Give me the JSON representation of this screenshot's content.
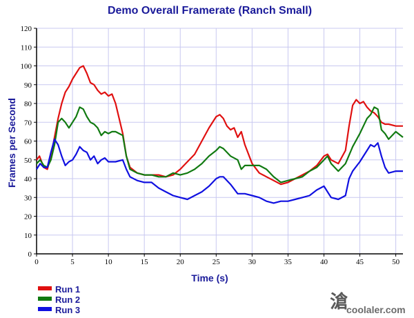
{
  "chart_data": {
    "type": "line",
    "title": "Demo Overall Framerate (Ranch Small)",
    "xlabel": "Time (s)",
    "ylabel": "Frames per Second",
    "xlim": [
      0,
      51
    ],
    "ylim": [
      0,
      120
    ],
    "xticks": [
      0,
      5,
      10,
      15,
      20,
      25,
      30,
      35,
      40,
      45,
      50
    ],
    "yticks": [
      0,
      10,
      20,
      30,
      40,
      50,
      60,
      70,
      80,
      90,
      100,
      110,
      120
    ],
    "grid": true,
    "legend_position": "bottom-left",
    "series": [
      {
        "name": "Run 1",
        "color": "#e01010",
        "points": [
          [
            0,
            50
          ],
          [
            0.4,
            52
          ],
          [
            1,
            46
          ],
          [
            1.5,
            45
          ],
          [
            2,
            52
          ],
          [
            2.5,
            62
          ],
          [
            3,
            72
          ],
          [
            3.5,
            80
          ],
          [
            4,
            86
          ],
          [
            4.5,
            89
          ],
          [
            5,
            93
          ],
          [
            5.5,
            96
          ],
          [
            6,
            99
          ],
          [
            6.5,
            100
          ],
          [
            7,
            96
          ],
          [
            7.5,
            91
          ],
          [
            8,
            90
          ],
          [
            8.5,
            87
          ],
          [
            9,
            85
          ],
          [
            9.5,
            86
          ],
          [
            10,
            84
          ],
          [
            10.5,
            85
          ],
          [
            11,
            80
          ],
          [
            11.5,
            72
          ],
          [
            12,
            64
          ],
          [
            12.5,
            52
          ],
          [
            13,
            46
          ],
          [
            14,
            43
          ],
          [
            15,
            42
          ],
          [
            16,
            42
          ],
          [
            17,
            42
          ],
          [
            18,
            41
          ],
          [
            19,
            42
          ],
          [
            20,
            45
          ],
          [
            21,
            49
          ],
          [
            22,
            53
          ],
          [
            23,
            60
          ],
          [
            24,
            67
          ],
          [
            25,
            73
          ],
          [
            25.5,
            74
          ],
          [
            26,
            72
          ],
          [
            26.5,
            68
          ],
          [
            27,
            66
          ],
          [
            27.5,
            67
          ],
          [
            28,
            62
          ],
          [
            28.5,
            65
          ],
          [
            29,
            58
          ],
          [
            30,
            48
          ],
          [
            31,
            43
          ],
          [
            32,
            41
          ],
          [
            33,
            39
          ],
          [
            34,
            37
          ],
          [
            35,
            38
          ],
          [
            36,
            40
          ],
          [
            37,
            42
          ],
          [
            38,
            44
          ],
          [
            39,
            47
          ],
          [
            40,
            52
          ],
          [
            40.5,
            53
          ],
          [
            41,
            50
          ],
          [
            42,
            48
          ],
          [
            43,
            55
          ],
          [
            43.5,
            68
          ],
          [
            44,
            79
          ],
          [
            44.5,
            82
          ],
          [
            45,
            80
          ],
          [
            45.5,
            81
          ],
          [
            46,
            78
          ],
          [
            46.5,
            76
          ],
          [
            47,
            75
          ],
          [
            47.5,
            73
          ],
          [
            48,
            70
          ],
          [
            48.5,
            69
          ],
          [
            49,
            69
          ],
          [
            50,
            68
          ],
          [
            51,
            68
          ]
        ]
      },
      {
        "name": "Run 2",
        "color": "#117a11",
        "points": [
          [
            0,
            48
          ],
          [
            0.5,
            50
          ],
          [
            1,
            47
          ],
          [
            1.5,
            46
          ],
          [
            2,
            50
          ],
          [
            2.5,
            58
          ],
          [
            3,
            70
          ],
          [
            3.5,
            72
          ],
          [
            4,
            70
          ],
          [
            4.5,
            67
          ],
          [
            5,
            70
          ],
          [
            5.5,
            73
          ],
          [
            6,
            78
          ],
          [
            6.5,
            77
          ],
          [
            7,
            73
          ],
          [
            7.5,
            70
          ],
          [
            8,
            69
          ],
          [
            8.5,
            67
          ],
          [
            9,
            63
          ],
          [
            9.5,
            65
          ],
          [
            10,
            64
          ],
          [
            10.5,
            65
          ],
          [
            11,
            65
          ],
          [
            11.5,
            64
          ],
          [
            12,
            63
          ],
          [
            12.5,
            52
          ],
          [
            13,
            45
          ],
          [
            14,
            43
          ],
          [
            15,
            42
          ],
          [
            16,
            42
          ],
          [
            17,
            41
          ],
          [
            18,
            41
          ],
          [
            19,
            43
          ],
          [
            20,
            42
          ],
          [
            21,
            43
          ],
          [
            22,
            45
          ],
          [
            23,
            48
          ],
          [
            24,
            52
          ],
          [
            25,
            55
          ],
          [
            25.5,
            57
          ],
          [
            26,
            56
          ],
          [
            27,
            52
          ],
          [
            28,
            50
          ],
          [
            28.5,
            45
          ],
          [
            29,
            47
          ],
          [
            30,
            47
          ],
          [
            31,
            47
          ],
          [
            32,
            45
          ],
          [
            33,
            41
          ],
          [
            34,
            38
          ],
          [
            35,
            39
          ],
          [
            36,
            40
          ],
          [
            37,
            41
          ],
          [
            38,
            44
          ],
          [
            39,
            46
          ],
          [
            40,
            50
          ],
          [
            40.5,
            52
          ],
          [
            41,
            48
          ],
          [
            42,
            44
          ],
          [
            43,
            48
          ],
          [
            44,
            57
          ],
          [
            45,
            64
          ],
          [
            45.5,
            68
          ],
          [
            46,
            72
          ],
          [
            46.5,
            74
          ],
          [
            47,
            78
          ],
          [
            47.5,
            77
          ],
          [
            48,
            66
          ],
          [
            48.5,
            64
          ],
          [
            49,
            61
          ],
          [
            50,
            65
          ],
          [
            51,
            62
          ]
        ]
      },
      {
        "name": "Run 3",
        "color": "#1010e0",
        "points": [
          [
            0,
            45
          ],
          [
            0.5,
            48
          ],
          [
            1,
            46
          ],
          [
            1.5,
            46
          ],
          [
            2,
            54
          ],
          [
            2.5,
            61
          ],
          [
            3,
            58
          ],
          [
            3.5,
            52
          ],
          [
            4,
            47
          ],
          [
            4.5,
            49
          ],
          [
            5,
            50
          ],
          [
            5.5,
            53
          ],
          [
            6,
            57
          ],
          [
            6.5,
            55
          ],
          [
            7,
            54
          ],
          [
            7.5,
            50
          ],
          [
            8,
            52
          ],
          [
            8.5,
            48
          ],
          [
            9,
            50
          ],
          [
            9.5,
            51
          ],
          [
            10,
            49
          ],
          [
            11,
            49
          ],
          [
            12,
            50
          ],
          [
            12.5,
            45
          ],
          [
            13,
            41
          ],
          [
            14,
            39
          ],
          [
            15,
            38
          ],
          [
            16,
            38
          ],
          [
            17,
            35
          ],
          [
            18,
            33
          ],
          [
            19,
            31
          ],
          [
            20,
            30
          ],
          [
            21,
            29
          ],
          [
            22,
            31
          ],
          [
            23,
            33
          ],
          [
            24,
            36
          ],
          [
            25,
            40
          ],
          [
            25.5,
            41
          ],
          [
            26,
            41
          ],
          [
            27,
            37
          ],
          [
            28,
            32
          ],
          [
            29,
            32
          ],
          [
            30,
            31
          ],
          [
            31,
            30
          ],
          [
            32,
            28
          ],
          [
            33,
            27
          ],
          [
            34,
            28
          ],
          [
            35,
            28
          ],
          [
            36,
            29
          ],
          [
            37,
            30
          ],
          [
            38,
            31
          ],
          [
            39,
            34
          ],
          [
            40,
            36
          ],
          [
            40.5,
            33
          ],
          [
            41,
            30
          ],
          [
            42,
            29
          ],
          [
            43,
            31
          ],
          [
            43.5,
            40
          ],
          [
            44,
            44
          ],
          [
            45,
            49
          ],
          [
            46,
            55
          ],
          [
            46.5,
            58
          ],
          [
            47,
            57
          ],
          [
            47.5,
            59
          ],
          [
            48,
            52
          ],
          [
            48.5,
            46
          ],
          [
            49,
            43
          ],
          [
            50,
            44
          ],
          [
            51,
            44
          ]
        ]
      }
    ]
  },
  "watermark": {
    "text": "coolaler.com",
    "logo_glyph": "滄"
  }
}
